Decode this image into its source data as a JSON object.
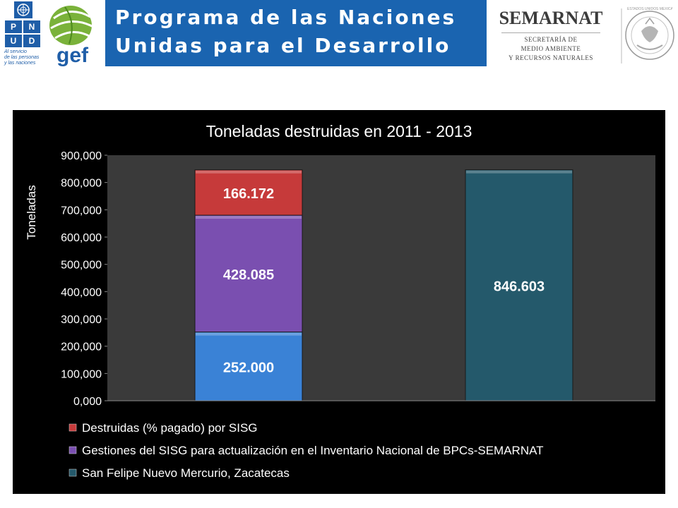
{
  "header": {
    "undp": {
      "letters": [
        "P",
        "N",
        "U",
        "D"
      ],
      "tagline": [
        "Al servicio",
        "de las personas",
        "y las naciones"
      ]
    },
    "gef": {
      "logo_text": "gef"
    },
    "banner": {
      "line1": "Programa de las Naciones",
      "line2": "Unidas para el Desarrollo",
      "color": "#1a64b0"
    },
    "semarnat": {
      "name": "SEMARNAT",
      "sub1": "SECRETARÍA DE",
      "sub2": "MEDIO AMBIENTE",
      "sub3": "Y RECURSOS NATURALES"
    },
    "seal": {
      "arc_text": "ESTADOS UNIDOS MEXICANOS"
    }
  },
  "chart_data": {
    "type": "bar",
    "stacked": true,
    "title": "Toneladas destruidas en 2011 - 2013",
    "ylabel": "Toneladas",
    "xlabel": "",
    "ylim": [
      0,
      900000
    ],
    "y_ticks": [
      "0,000",
      "100,000",
      "200,000",
      "300,000",
      "400,000",
      "500,000",
      "600,000",
      "700,000",
      "800,000",
      "900,000"
    ],
    "categories": [
      "",
      ""
    ],
    "series": [
      {
        "name": "San Felipe Nuevo Mercurio, Zacatecas",
        "values": [
          0,
          846603
        ],
        "labels": [
          "",
          "846.603"
        ],
        "color": "#24596b"
      },
      {
        "name": "Gestiones del SISG para actualización en el Inventario Nacional de BPCs-SEMARNAT",
        "values": [
          428085,
          0
        ],
        "labels": [
          "428.085",
          ""
        ],
        "color": "#7a4fb0"
      },
      {
        "name": "Destruidas (% pagado) por SISG",
        "values": [
          166172,
          0
        ],
        "labels": [
          "166.172",
          ""
        ],
        "color": "#c63a3a"
      }
    ],
    "base_series": {
      "name": "",
      "values": [
        252000,
        0
      ],
      "labels": [
        "252.000",
        ""
      ],
      "color": "#3a82d6"
    },
    "legend": {
      "placement": "bottom",
      "entries": [
        {
          "text": "Destruidas (% pagado) por SISG",
          "color": "#c63a3a"
        },
        {
          "text": "Gestiones del SISG para actualización en el Inventario Nacional de BPCs-SEMARNAT",
          "color": "#7a4fb0"
        },
        {
          "text": "San Felipe Nuevo Mercurio, Zacatecas",
          "color": "#24596b"
        }
      ]
    },
    "plot_background": "#3a3a3a",
    "grid": false
  }
}
